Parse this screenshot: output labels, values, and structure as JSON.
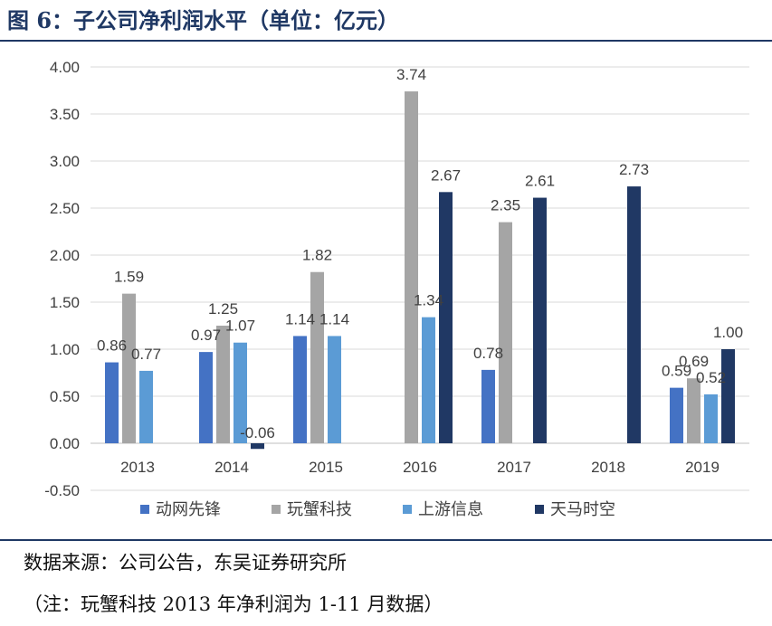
{
  "figure": {
    "title": "图 6：子公司净利润水平（单位：亿元）",
    "source": "数据来源：公司公告，东吴证券研究所",
    "note": "（注：玩蟹科技 2013 年净利润为 1-11 月数据）"
  },
  "chart_data": {
    "type": "bar",
    "title": "",
    "xlabel": "",
    "ylabel": "",
    "categories": [
      "2013",
      "2014",
      "2015",
      "2016",
      "2017",
      "2018",
      "2019"
    ],
    "ylim": [
      -0.5,
      4.0
    ],
    "yticks": [
      "4.00",
      "3.50",
      "3.00",
      "2.50",
      "2.00",
      "1.50",
      "1.00",
      "0.50",
      "0.00",
      "-0.50"
    ],
    "grid": true,
    "legend_position": "bottom",
    "series": [
      {
        "name": "动网先锋",
        "color": "#4472c4",
        "values": [
          0.86,
          0.97,
          1.14,
          null,
          0.78,
          null,
          0.59
        ],
        "labels": [
          "0.86",
          "0.97",
          "1.14",
          "",
          "0.78",
          "",
          "0.59"
        ]
      },
      {
        "name": "玩蟹科技",
        "color": "#a5a5a5",
        "values": [
          1.59,
          1.25,
          1.82,
          3.74,
          2.35,
          null,
          0.69
        ],
        "labels": [
          "1.59",
          "1.25",
          "1.82",
          "3.74",
          "2.35",
          "",
          "0.69"
        ]
      },
      {
        "name": "上游信息",
        "color": "#5b9bd5",
        "values": [
          0.77,
          1.07,
          1.14,
          1.34,
          null,
          null,
          0.52
        ],
        "labels": [
          "0.77",
          "1.07",
          "1.14",
          "1.34",
          "",
          "",
          "0.52"
        ]
      },
      {
        "name": "天马时空",
        "color": "#203864",
        "values": [
          null,
          -0.06,
          null,
          2.67,
          2.61,
          2.73,
          1.0
        ],
        "labels": [
          "",
          "-0.06",
          "",
          "2.67",
          "2.61",
          "2.73",
          "1.00"
        ]
      }
    ]
  }
}
